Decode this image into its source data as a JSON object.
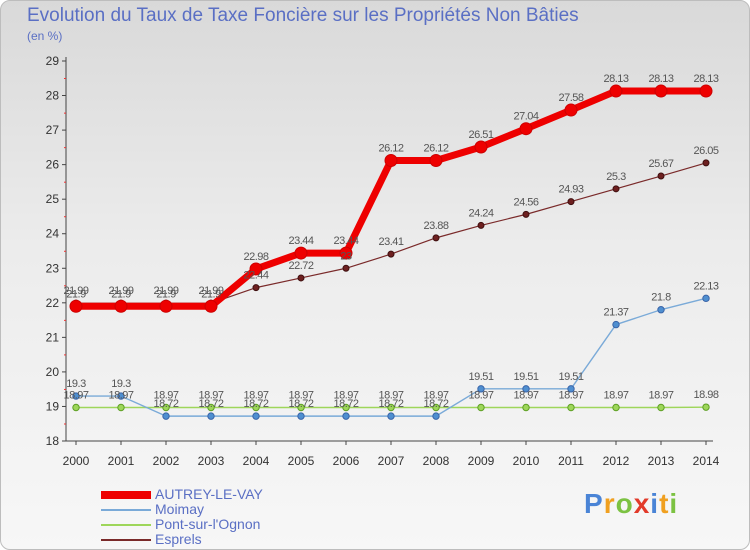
{
  "header": {
    "title": "Evolution du Taux de Taxe Foncière sur les Propriétés Non Bâties",
    "subtitle": "(en %)"
  },
  "brand": {
    "text": "Proxiti",
    "colors": [
      "#4a84d6",
      "#f0a020",
      "#7cc242",
      "#e23a2a",
      "#4a84d6",
      "#f0a020",
      "#7cc242"
    ]
  },
  "chart_data": {
    "type": "line",
    "x": [
      2000,
      2001,
      2002,
      2003,
      2004,
      2005,
      2006,
      2007,
      2008,
      2009,
      2010,
      2011,
      2012,
      2013,
      2014
    ],
    "ylim": [
      18,
      29
    ],
    "yticks": [
      18,
      19,
      20,
      21,
      22,
      23,
      24,
      25,
      26,
      27,
      28,
      29
    ],
    "grid": false,
    "legend_position": "bottom-left",
    "series": [
      {
        "name": "AUTREY-LE-VAY",
        "color": "#ee0000",
        "values": [
          21.9,
          21.9,
          21.9,
          21.9,
          22.98,
          23.44,
          23.44,
          26.12,
          26.12,
          26.51,
          27.04,
          27.58,
          28.13,
          28.13,
          28.13
        ],
        "labels": [
          "21.9",
          "21.9",
          "21.9",
          "21.9",
          "22.98",
          "23.44",
          "23.44",
          "26.12",
          "26.12",
          "26.51",
          "27.04",
          "27.58",
          "28.13",
          "28.13",
          "28.13"
        ]
      },
      {
        "name": "Moimay",
        "color": "#7aaad8",
        "values": [
          19.3,
          19.3,
          18.72,
          18.72,
          18.72,
          18.72,
          18.72,
          18.72,
          18.72,
          19.51,
          19.51,
          19.51,
          21.37,
          21.8,
          22.13
        ],
        "labels": [
          "19.3",
          "19.3",
          "18.72",
          "18.72",
          "18.72",
          "18.72",
          "18.72",
          "18.72",
          "18.72",
          "19.51",
          "19.51",
          "19.51",
          "21.37",
          "21.8",
          "22.13"
        ]
      },
      {
        "name": "Pont-sur-l'Ognon",
        "color": "#9ed65a",
        "values": [
          18.97,
          18.97,
          18.97,
          18.97,
          18.97,
          18.97,
          18.97,
          18.97,
          18.97,
          18.97,
          18.97,
          18.97,
          18.97,
          18.97,
          18.98
        ],
        "labels": [
          "18.97",
          "18.97",
          "18.97",
          "18.97",
          "18.97",
          "18.97",
          "18.97",
          "18.97",
          "18.97",
          "18.97",
          "18.97",
          "18.97",
          "18.97",
          "18.97",
          "18.98"
        ]
      },
      {
        "name": "Esprels",
        "color": "#7a2a2a",
        "values": [
          21.99,
          21.99,
          21.99,
          21.99,
          22.44,
          22.72,
          23.0,
          23.41,
          23.88,
          24.24,
          24.56,
          24.93,
          25.3,
          25.67,
          26.05
        ],
        "labels": [
          "21.99",
          "21.99",
          "21.99",
          "21.99",
          "22.44",
          "22.72",
          "23",
          "23.41",
          "23.88",
          "24.24",
          "24.56",
          "24.93",
          "25.3",
          "25.67",
          "26.05"
        ]
      }
    ]
  }
}
